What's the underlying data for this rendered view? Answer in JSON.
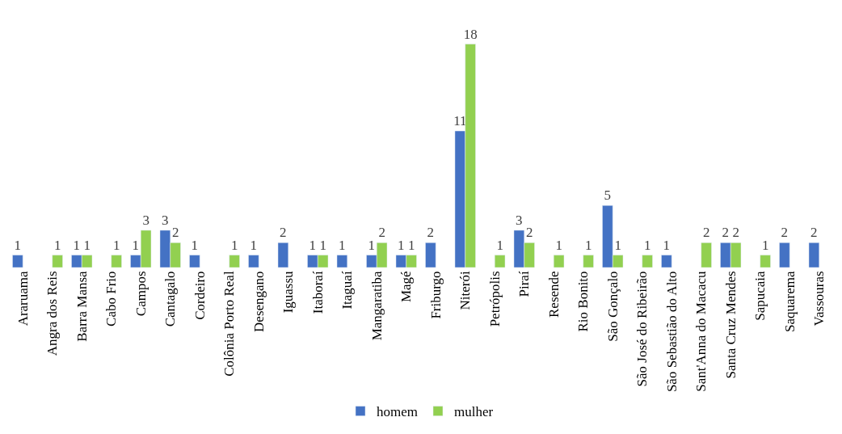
{
  "chart_data": {
    "type": "bar",
    "categories": [
      "Araruama",
      "Angra dos Reis",
      "Barra Mansa",
      "Cabo Frio",
      "Campos",
      "Cantagalo",
      "Cordeiro",
      "Colônia Porto Real",
      "Desengano",
      "Iguassu",
      "Itaboraí",
      "Itaguaí",
      "Mangaratiba",
      "Magé",
      "Friburgo",
      "Niterói",
      "Petrópolis",
      "Piraí",
      "Resende",
      "Rio Bonito",
      "São Gonçalo",
      "São José do Ribeirão",
      "São Sebastião do Alto",
      "Sant'Anna do Macacu",
      "Santa Cruz Mendes",
      "Sapucaia",
      "Saquarema",
      "Vassouras"
    ],
    "series": [
      {
        "name": "homem",
        "color": "#4472c4",
        "values": [
          1,
          null,
          1,
          null,
          1,
          3,
          1,
          null,
          1,
          2,
          1,
          1,
          1,
          1,
          2,
          11,
          null,
          3,
          null,
          null,
          5,
          null,
          1,
          null,
          2,
          null,
          2,
          2
        ]
      },
      {
        "name": "mulher",
        "color": "#92d050",
        "values": [
          null,
          1,
          1,
          1,
          3,
          2,
          null,
          1,
          null,
          null,
          1,
          null,
          2,
          1,
          null,
          18,
          1,
          2,
          1,
          1,
          1,
          1,
          null,
          2,
          2,
          1,
          null,
          null
        ]
      }
    ],
    "data_labels": true,
    "legend": "bottom",
    "tick_labels": "x"
  }
}
